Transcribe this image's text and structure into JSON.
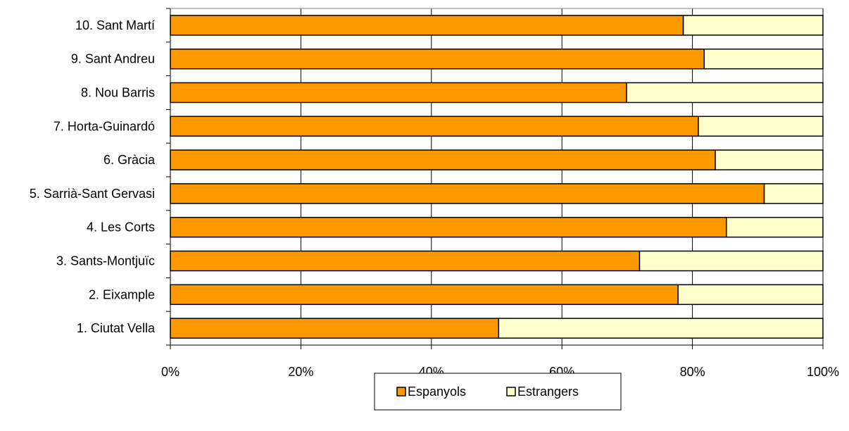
{
  "chart_data": {
    "type": "bar",
    "orientation": "horizontal",
    "stacking": "percent",
    "categories": [
      "1. Ciutat Vella",
      "2. Eixample",
      "3. Sants-Montjuïc",
      "4. Les Corts",
      "5. Sarrià-Sant Gervasi",
      "6. Gràcia",
      "7. Horta-Guinardó",
      "8. Nou Barris",
      "9. Sant Andreu",
      "10. Sant Martí"
    ],
    "series": [
      {
        "name": "Espanyols",
        "color": "#FF9900",
        "values": [
          50.3,
          77.8,
          71.9,
          85.2,
          91.0,
          83.5,
          80.9,
          69.9,
          81.8,
          78.6
        ]
      },
      {
        "name": "Estrangers",
        "color": "#FFFFCC",
        "values": [
          49.7,
          22.2,
          28.1,
          14.8,
          9.0,
          16.5,
          19.1,
          30.1,
          18.2,
          21.4
        ]
      }
    ],
    "x_ticks": [
      "0%",
      "20%",
      "40%",
      "60%",
      "80%",
      "100%"
    ],
    "xlim": [
      0,
      100
    ],
    "grid": "vertical",
    "legend_position": "bottom"
  }
}
